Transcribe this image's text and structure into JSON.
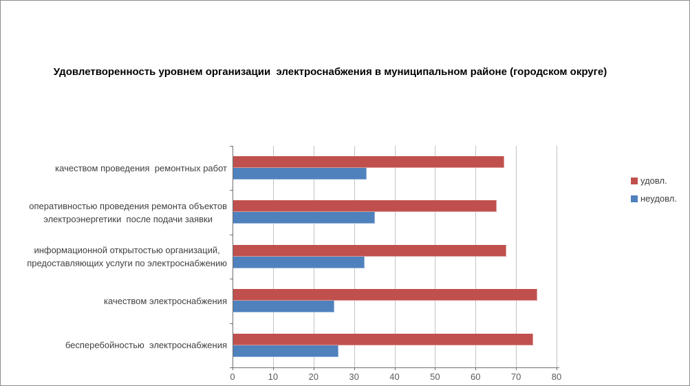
{
  "chart_data": {
    "type": "bar",
    "orientation": "horizontal",
    "title": "Удовлетворенность уровнем организации  электроснабжения в муниципальном районе (городском округе)",
    "categories": [
      "качеством проведения  ремонтных работ",
      "оперативностью проведения ремонта объектов\nэлектроэнергетики  после подачи заявки",
      "информационной открытостью организаций,\nпредоставляющих услуги по электроснабжению",
      "качеством электроснабжения",
      "бесперебойностью  электроснабжения"
    ],
    "series": [
      {
        "name": "удовл.",
        "color": "#C0504D",
        "border_color": "#D99795",
        "values": [
          67,
          65,
          67.5,
          75,
          74
        ]
      },
      {
        "name": "неудовл.",
        "color": "#4F81BD",
        "border_color": "#95B3D7",
        "values": [
          33,
          35,
          32.5,
          25,
          26
        ]
      }
    ],
    "x_axis": {
      "min": 0,
      "max": 80,
      "step": 10,
      "tick_labels": [
        "0",
        "10",
        "20",
        "30",
        "40",
        "50",
        "60",
        "70",
        "80"
      ]
    },
    "legend": {
      "position": "right",
      "entries": [
        "удовл.",
        "неудовл."
      ]
    },
    "grid": true
  }
}
